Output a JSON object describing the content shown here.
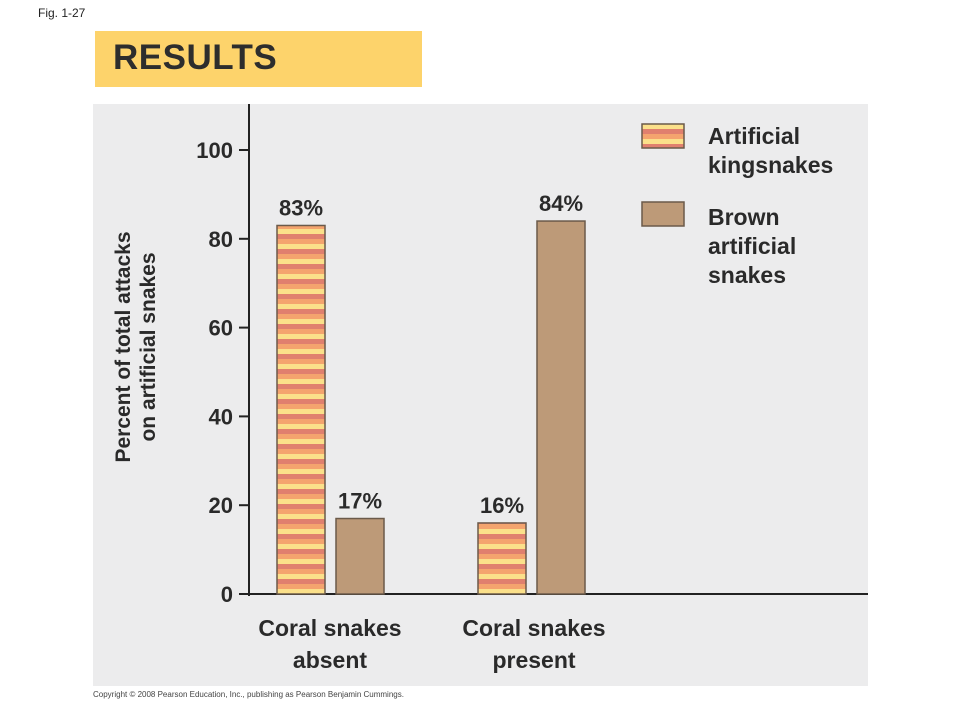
{
  "figure": {
    "label": "Fig. 1-27"
  },
  "banner": {
    "title": "RESULTS",
    "color": "#fdd36b"
  },
  "chart_data": {
    "type": "bar",
    "title": "",
    "ylabel_lines": [
      "Percent of total attacks",
      "on artificial snakes"
    ],
    "xlabel": "",
    "ylim": [
      0,
      100
    ],
    "yticks": [
      0,
      20,
      40,
      60,
      80,
      100
    ],
    "categories": [
      {
        "lines": [
          "Coral snakes",
          "absent"
        ]
      },
      {
        "lines": [
          "Coral snakes",
          "present"
        ]
      }
    ],
    "series": [
      {
        "name_lines": [
          "Artificial",
          "kingsnakes"
        ],
        "pattern": "striped",
        "colors": [
          "#f4a46e",
          "#fbe08a",
          "#e0806e"
        ],
        "values": [
          83,
          16
        ],
        "labels": [
          "83%",
          "16%"
        ]
      },
      {
        "name_lines": [
          "Brown",
          "artificial",
          "snakes"
        ],
        "pattern": "solid",
        "colors": [
          "#bd9a78"
        ],
        "values": [
          17,
          84
        ],
        "labels": [
          "17%",
          "84%"
        ]
      }
    ],
    "legend_position": "top-right",
    "grid": false,
    "background": "#ececed"
  },
  "copyright": "Copyright © 2008 Pearson Education, Inc., publishing as Pearson Benjamin Cummings."
}
